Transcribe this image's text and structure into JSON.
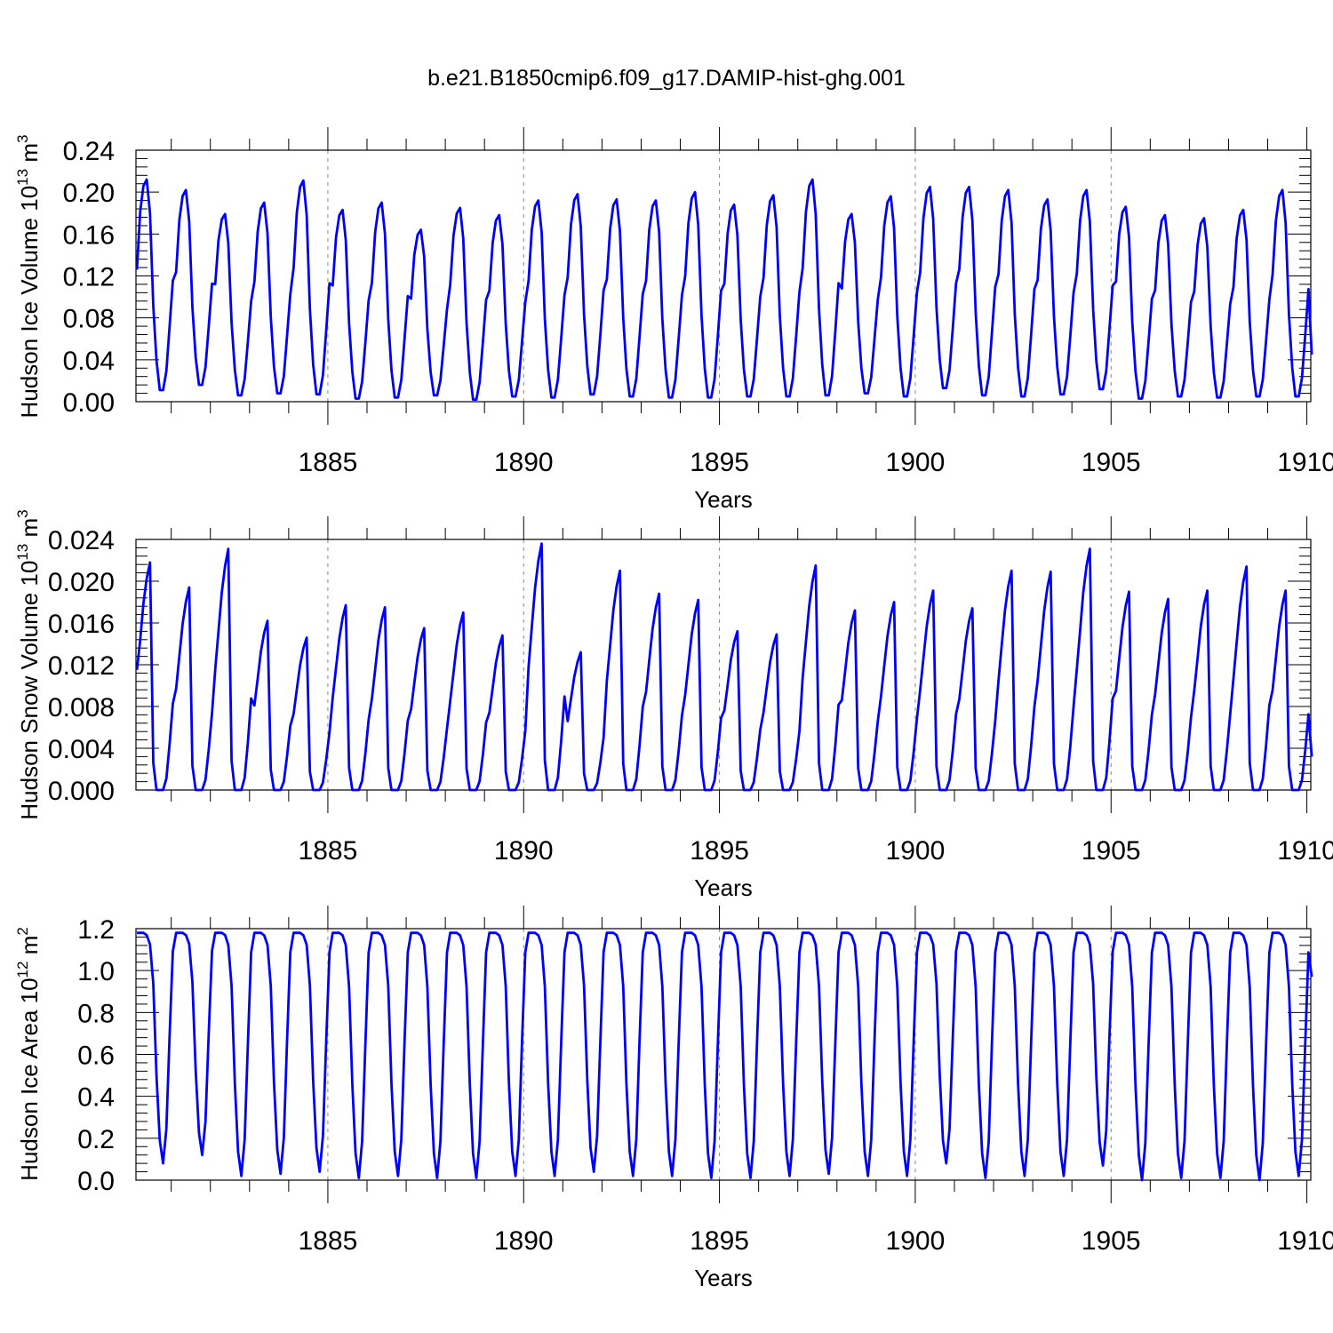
{
  "title": "b.e21.B1850cmip6.f09_g17.DAMIP-hist-ghg.001",
  "line_color": "#0000ff",
  "chart_data": [
    {
      "type": "line",
      "ylabel": "Hudson Ice Volume 10",
      "ylabel_exp": "13",
      "ylabel_unit": "m",
      "ylabel_unit_exp": "3",
      "xlabel": "Years",
      "xlim": [
        1880.1,
        1910.1
      ],
      "ylim": [
        0,
        0.24
      ],
      "yticks": [
        "0.00",
        "0.04",
        "0.08",
        "0.12",
        "0.16",
        "0.20",
        "0.24"
      ],
      "xticks": [
        "1885",
        "1890",
        "1895",
        "1900",
        "1905",
        "1910"
      ],
      "series": [
        {
          "name": "Hudson Ice Volume",
          "start_year": 1880.125,
          "peaks": [
            0.212,
            0.202,
            0.179,
            0.19,
            0.211,
            0.183,
            0.19,
            0.164,
            0.185,
            0.178,
            0.192,
            0.198,
            0.193,
            0.192,
            0.2,
            0.188,
            0.197,
            0.212,
            0.179,
            0.196,
            0.205,
            0.205,
            0.202,
            0.193,
            0.202,
            0.186,
            0.178,
            0.175,
            0.183,
            0.202
          ],
          "troughs": [
            0.011,
            0.016,
            0.006,
            0.008,
            0.007,
            0.003,
            0.004,
            0.006,
            0.002,
            0.005,
            0.004,
            0.007,
            0.005,
            0.004,
            0.004,
            0.005,
            0.005,
            0.006,
            0.008,
            0.005,
            0.013,
            0.006,
            0.005,
            0.007,
            0.012,
            0.003,
            0.005,
            0.004,
            0.005,
            0.005
          ],
          "start_value": 0.126,
          "end_value": 0.045
        }
      ]
    },
    {
      "type": "line",
      "ylabel": "Hudson Snow Volume 10",
      "ylabel_exp": "13",
      "ylabel_unit": "m",
      "ylabel_unit_exp": "3",
      "xlabel": "Years",
      "xlim": [
        1880.1,
        1910.1
      ],
      "ylim": [
        0,
        0.024
      ],
      "yticks": [
        "0.000",
        "0.004",
        "0.008",
        "0.012",
        "0.016",
        "0.020",
        "0.024"
      ],
      "xticks": [
        "1885",
        "1890",
        "1895",
        "1900",
        "1905",
        "1910"
      ],
      "series": [
        {
          "name": "Hudson Snow Volume",
          "start_year": 1880.125,
          "peaks": [
            0.0218,
            0.0194,
            0.0231,
            0.0162,
            0.0146,
            0.0177,
            0.0175,
            0.0155,
            0.017,
            0.0148,
            0.0236,
            0.0132,
            0.021,
            0.0188,
            0.0182,
            0.0152,
            0.0149,
            0.0215,
            0.0172,
            0.018,
            0.0191,
            0.0174,
            0.021,
            0.0209,
            0.0231,
            0.019,
            0.0183,
            0.0191,
            0.0214,
            0.0191
          ],
          "troughs": [
            0.0,
            0.0,
            0.0,
            0.0,
            0.0,
            0.0,
            0.0,
            0.0,
            0.0,
            0.0,
            0.0,
            0.0,
            0.0,
            0.0,
            0.0,
            0.0,
            0.0,
            0.0,
            0.0,
            0.0,
            0.0,
            0.0,
            0.0,
            0.0,
            0.0,
            0.0,
            0.0,
            0.0,
            0.0,
            0.0
          ],
          "start_value": 0.0115,
          "end_value": 0.0032
        }
      ]
    },
    {
      "type": "line",
      "ylabel": "Hudson Ice Area 10",
      "ylabel_exp": "12",
      "ylabel_unit": "m",
      "ylabel_unit_exp": "2",
      "xlabel": "Years",
      "xlim": [
        1880.1,
        1910.1
      ],
      "ylim": [
        0,
        1.2
      ],
      "yticks": [
        "0.0",
        "0.2",
        "0.4",
        "0.6",
        "0.8",
        "1.0",
        "1.2"
      ],
      "xticks": [
        "1885",
        "1890",
        "1895",
        "1900",
        "1905",
        "1910"
      ],
      "series": [
        {
          "name": "Hudson Ice Area",
          "start_year": 1880.125,
          "peaks": [
            1.18,
            1.18,
            1.18,
            1.18,
            1.18,
            1.18,
            1.18,
            1.18,
            1.18,
            1.18,
            1.18,
            1.18,
            1.18,
            1.18,
            1.18,
            1.18,
            1.18,
            1.18,
            1.18,
            1.18,
            1.18,
            1.18,
            1.18,
            1.18,
            1.18,
            1.18,
            1.18,
            1.18,
            1.18,
            1.18
          ],
          "troughs": [
            0.08,
            0.12,
            0.02,
            0.03,
            0.04,
            0.01,
            0.02,
            0.01,
            0.01,
            0.02,
            0.02,
            0.04,
            0.02,
            0.02,
            0.01,
            0.01,
            0.02,
            0.03,
            0.02,
            0.02,
            0.08,
            0.01,
            0.02,
            0.02,
            0.07,
            0.0,
            0.01,
            0.01,
            0.0,
            0.02
          ],
          "start_value": 1.18,
          "end_value": 0.97
        }
      ]
    }
  ]
}
